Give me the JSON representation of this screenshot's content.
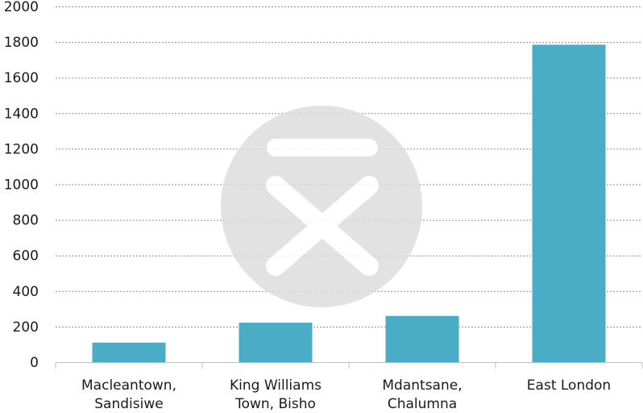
{
  "chart_data": {
    "type": "bar",
    "categories": [
      [
        "Macleantown,",
        "Sandisiwe"
      ],
      [
        "King Williams",
        "Town, Bisho"
      ],
      [
        "Mdantsane,",
        "Chalumna"
      ],
      [
        "East London"
      ]
    ],
    "values": [
      110,
      222,
      260,
      1785
    ],
    "title": "",
    "xlabel": "",
    "ylabel": "",
    "ylim": [
      0,
      2000
    ],
    "yticks": [
      0,
      200,
      400,
      600,
      800,
      1000,
      1200,
      1400,
      1600,
      1800,
      2000
    ],
    "grid": true,
    "legend": "none",
    "bar_color": "#4bacc6",
    "watermark": "centered grey circle logo"
  }
}
